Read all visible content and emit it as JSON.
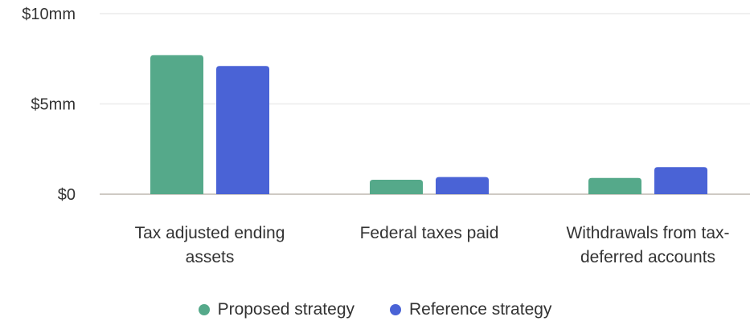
{
  "chart_data": {
    "type": "bar",
    "categories": [
      [
        "Tax adjusted ending",
        "assets"
      ],
      [
        "Federal taxes paid"
      ],
      [
        "Withdrawals from tax-",
        "deferred accounts"
      ]
    ],
    "series": [
      {
        "name": "Proposed strategy",
        "color": "#55a98a",
        "values": [
          7.7,
          0.8,
          0.9
        ]
      },
      {
        "name": "Reference strategy",
        "color": "#4a63d6",
        "values": [
          7.1,
          0.95,
          1.5
        ]
      }
    ],
    "ylim": [
      0,
      10
    ],
    "yticks": [
      {
        "value": 0,
        "label": "$0"
      },
      {
        "value": 5,
        "label": "$5mm"
      },
      {
        "value": 10,
        "label": "$10mm"
      }
    ],
    "grid": true,
    "legend_position": "bottom-center",
    "xlabel": "",
    "ylabel": ""
  }
}
